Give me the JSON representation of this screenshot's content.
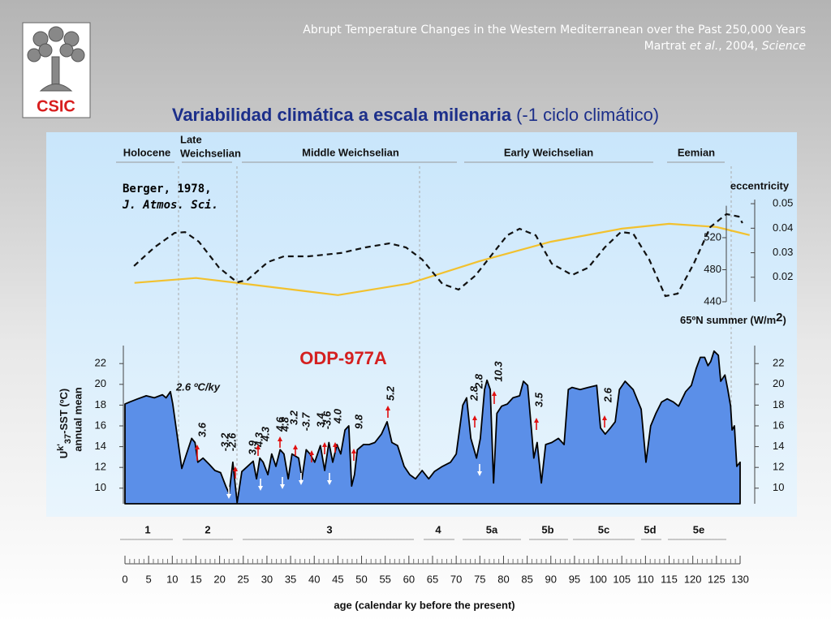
{
  "header": {
    "title": "Abrupt Temperature Changes in the Western Mediterranean over the Past 250,000 Years",
    "authors": "Martrat ",
    "etal": "et al.",
    "year": ", 2004, ",
    "journal": "Science"
  },
  "logo": {
    "text": "CSIC"
  },
  "slide_title": {
    "main": "Variabilidad climática a escala milenaria",
    "note": "(-1 ciclo climático)"
  },
  "stages": {
    "holocene": "Holocene",
    "late1": "Late",
    "late2": "Weichselian",
    "middle": "Middle Weichselian",
    "early": "Early Weichselian",
    "eemian": "Eemian"
  },
  "reference": {
    "line1": "Berger, 1978,",
    "line2": "J. Atmos. Sci."
  },
  "ecc_label": "eccentricity",
  "insol_label": {
    "pre": "65ºN summer (W/m",
    "sup": "2",
    "post": ")"
  },
  "core_label": "ODP-977A",
  "sst_label": {
    "u": "U",
    "k": "k'",
    "sub": "37",
    "rest": "-SST (ºC)",
    "line2": "annual mean"
  },
  "rate_label": "2.6 ºC/ky",
  "rates": [
    "3.6",
    "-3.2",
    "-2.6",
    "3.9",
    "4.3",
    "4.3",
    "4.6",
    "4.8",
    "3.2",
    "-3.7",
    "3.4",
    "-3.6",
    "4.0",
    "9.8",
    "5.2",
    "2.8",
    "2.8",
    "10.3",
    "3.5",
    "2.6"
  ],
  "mis": [
    "1",
    "2",
    "3",
    "4",
    "5a",
    "5b",
    "5c",
    "5d",
    "5e"
  ],
  "chart_data": [
    {
      "type": "line",
      "name": "eccentricity",
      "color": "#f2c12e",
      "xlim": [
        0,
        130
      ],
      "ylim": [
        0.01,
        0.055
      ],
      "yticks": [
        0.02,
        0.03,
        0.04,
        0.05
      ],
      "x": [
        2,
        15,
        25,
        45,
        60,
        75,
        90,
        105,
        115,
        125,
        132
      ],
      "values": [
        0.0177,
        0.0197,
        0.0174,
        0.0127,
        0.0174,
        0.0266,
        0.0345,
        0.0398,
        0.0418,
        0.0405,
        0.0372
      ]
    },
    {
      "type": "line",
      "name": "insolation",
      "color": "#111111",
      "dashed": true,
      "xlim": [
        0,
        130
      ],
      "ylim": [
        440,
        570
      ],
      "yticks": [
        440,
        480,
        520
      ],
      "x": [
        1.9,
        6.2,
        10.5,
        12.7,
        15.6,
        19.9,
        23.7,
        25.9,
        30.2,
        33.6,
        38.8,
        45.6,
        50.8,
        55.9,
        59.4,
        62.8,
        67.1,
        70.5,
        74,
        77.4,
        80.8,
        83.4,
        86.8,
        90.2,
        94.5,
        97.9,
        101.4,
        104.8,
        107.4,
        110.8,
        114.2,
        116.8,
        120.2,
        123.7,
        127.1,
        129.7,
        130.5
      ],
      "values": [
        484.6,
        507.8,
        526,
        527,
        515,
        482.5,
        464.3,
        467.3,
        489.6,
        496.7,
        496.7,
        500.8,
        507.8,
        512.9,
        507.8,
        492.7,
        462.3,
        455.2,
        472.4,
        497.7,
        523,
        531.1,
        523,
        487.6,
        473.4,
        482.5,
        507.8,
        527.1,
        525.1,
        492.7,
        447.1,
        450.1,
        487.6,
        533.2,
        549.4,
        546.3,
        538.2
      ]
    },
    {
      "type": "area",
      "name": "sst",
      "color": "#5b8fe8",
      "xlim": [
        0,
        130
      ],
      "ylim": [
        8.5,
        23.5
      ],
      "yticks": [
        10,
        12,
        14,
        16,
        18,
        20,
        22
      ],
      "xticks": [
        0,
        5,
        10,
        15,
        20,
        25,
        30,
        35,
        40,
        45,
        50,
        55,
        60,
        65,
        70,
        75,
        80,
        85,
        90,
        95,
        100,
        105,
        110,
        115,
        120,
        125,
        130
      ],
      "xlabel": "age (calendar ky before the present)",
      "x": [
        0,
        1,
        2.7,
        4.5,
        6.2,
        7.9,
        8.7,
        9.6,
        10.1,
        11,
        12,
        13,
        14.1,
        14.8,
        15.4,
        16.5,
        17.8,
        19,
        20.2,
        21.3,
        22,
        22.8,
        23.7,
        24.7,
        25.9,
        27.1,
        27.8,
        28.5,
        29.2,
        30.2,
        31,
        31.9,
        32.8,
        33.6,
        34.5,
        35.3,
        36.7,
        37.4,
        38.3,
        39.1,
        40.1,
        41.3,
        42.2,
        43.1,
        43.9,
        44.8,
        45.6,
        46.5,
        47.3,
        47.9,
        48.5,
        49.1,
        50.4,
        51.6,
        52.8,
        54.2,
        55.4,
        56.4,
        57.6,
        59,
        60.2,
        61.4,
        62.8,
        64.2,
        65.4,
        67.1,
        68.8,
        70,
        71.4,
        72.2,
        73.1,
        74.3,
        75.1,
        76,
        76.5,
        77.2,
        77.9,
        78.6,
        79.6,
        80.8,
        82,
        83.4,
        84.2,
        85.1,
        85.9,
        86.4,
        87.1,
        88,
        88.9,
        90.2,
        91.6,
        92.8,
        93.7,
        94.5,
        96.2,
        97.9,
        99.7,
        100.5,
        101.5,
        102.6,
        103.6,
        104.5,
        105.7,
        107.4,
        109.1,
        110.1,
        111.1,
        112.2,
        113.4,
        114.6,
        115.9,
        117,
        118.5,
        119.7,
        120.7,
        121.6,
        122.5,
        123.2,
        123.8,
        124.5,
        125.4,
        125.9,
        126.8,
        127.4,
        128,
        128.3,
        128.8,
        129.3,
        130
      ],
      "values": [
        18.1,
        18.3,
        18.6,
        18.9,
        18.7,
        19,
        18.7,
        19.3,
        18.1,
        15.2,
        11.9,
        13.3,
        14.8,
        14.4,
        12.5,
        12.9,
        12.3,
        11.7,
        11.5,
        10.2,
        9.5,
        12.5,
        8.6,
        11.6,
        12.1,
        12.6,
        10.9,
        12.9,
        12.5,
        11.3,
        13.3,
        12.1,
        13.7,
        13.3,
        10.9,
        13.3,
        12.9,
        10.9,
        13.7,
        13.3,
        12.5,
        14.1,
        11.7,
        14.4,
        12.5,
        14.2,
        13.3,
        15.6,
        16,
        10.2,
        11.3,
        13.7,
        14.2,
        14.2,
        14.4,
        15.2,
        16.4,
        14.4,
        14.1,
        12.1,
        11.3,
        10.9,
        11.7,
        10.9,
        11.6,
        12.1,
        12.5,
        13.3,
        18,
        18.7,
        14.8,
        12.9,
        14.8,
        19.5,
        20.4,
        19.5,
        10.5,
        17.2,
        17.9,
        18.1,
        18.7,
        18.9,
        20.3,
        19.9,
        15.6,
        12.9,
        14.4,
        10.5,
        14.2,
        14.4,
        14.8,
        14.2,
        19.5,
        19.7,
        19.5,
        19.7,
        19.9,
        15.8,
        15.2,
        15.8,
        16.4,
        19.5,
        20.3,
        19.5,
        17.6,
        12.5,
        16,
        17.2,
        18.3,
        18.6,
        18.3,
        17.9,
        19.3,
        19.9,
        21.5,
        22.6,
        22.6,
        21.8,
        22.2,
        23.2,
        22.8,
        20.3,
        20.9,
        19.5,
        17.9,
        15.6,
        16,
        12.1,
        12.5
      ]
    }
  ]
}
